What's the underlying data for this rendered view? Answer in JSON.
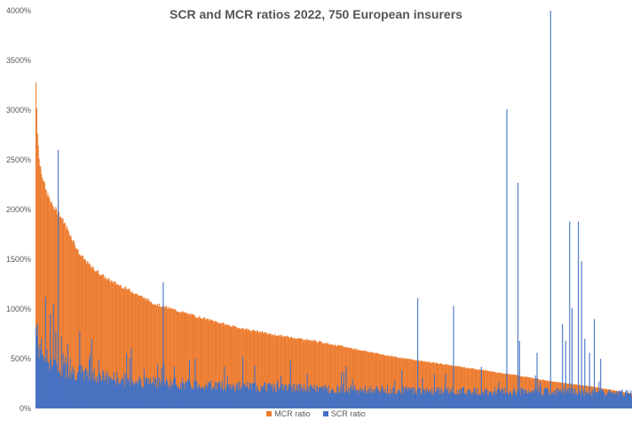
{
  "chart_data": {
    "type": "bar",
    "title": "SCR and MCR ratios 2022, 750 European insurers",
    "xlabel": "",
    "ylabel": "",
    "ylim": [
      0,
      4000
    ],
    "y_ticks": [
      "0%",
      "500%",
      "1000%",
      "1500%",
      "2000%",
      "2500%",
      "3000%",
      "3500%",
      "4000%"
    ],
    "n_insurers": 750,
    "grid": false,
    "legend_position": "bottom",
    "note": "Insurers sorted by MCR ratio descending; bars overlap (SCR drawn in front of MCR).",
    "mcr_profile": {
      "index": [
        0,
        2,
        4,
        8,
        12,
        20,
        30,
        40,
        55,
        70,
        90,
        120,
        150,
        200,
        250,
        300,
        350,
        400,
        450,
        500,
        550,
        600,
        650,
        700,
        749
      ],
      "value": [
        3280,
        2800,
        2500,
        2350,
        2200,
        2050,
        1950,
        1800,
        1550,
        1420,
        1300,
        1180,
        1050,
        930,
        820,
        740,
        680,
        600,
        520,
        460,
        400,
        340,
        270,
        220,
        150
      ]
    },
    "scr_profile": {
      "index": [
        0,
        5,
        15,
        30,
        60,
        100,
        150,
        200,
        300,
        400,
        500,
        600,
        700,
        749
      ],
      "value": [
        800,
        600,
        480,
        400,
        350,
        300,
        260,
        240,
        210,
        190,
        180,
        170,
        160,
        150
      ]
    },
    "scr_spikes": [
      {
        "i": 12,
        "v": 1120
      },
      {
        "i": 18,
        "v": 950
      },
      {
        "i": 22,
        "v": 1050
      },
      {
        "i": 25,
        "v": 780
      },
      {
        "i": 28,
        "v": 2600
      },
      {
        "i": 32,
        "v": 720
      },
      {
        "i": 40,
        "v": 650
      },
      {
        "i": 55,
        "v": 780
      },
      {
        "i": 70,
        "v": 700
      },
      {
        "i": 120,
        "v": 600
      },
      {
        "i": 160,
        "v": 1270
      },
      {
        "i": 200,
        "v": 500
      },
      {
        "i": 260,
        "v": 520
      },
      {
        "i": 320,
        "v": 480
      },
      {
        "i": 390,
        "v": 420
      },
      {
        "i": 460,
        "v": 380
      },
      {
        "i": 480,
        "v": 1110
      },
      {
        "i": 525,
        "v": 1030
      },
      {
        "i": 560,
        "v": 420
      },
      {
        "i": 592,
        "v": 3010
      },
      {
        "i": 606,
        "v": 2270
      },
      {
        "i": 608,
        "v": 680
      },
      {
        "i": 630,
        "v": 560
      },
      {
        "i": 647,
        "v": 4000
      },
      {
        "i": 662,
        "v": 850
      },
      {
        "i": 666,
        "v": 680
      },
      {
        "i": 671,
        "v": 1880
      },
      {
        "i": 674,
        "v": 1010
      },
      {
        "i": 682,
        "v": 1880
      },
      {
        "i": 686,
        "v": 1480
      },
      {
        "i": 690,
        "v": 700
      },
      {
        "i": 696,
        "v": 560
      },
      {
        "i": 702,
        "v": 900
      },
      {
        "i": 710,
        "v": 500
      }
    ],
    "series": [
      {
        "name": "MCR ratio",
        "color": "#ED7D31"
      },
      {
        "name": "SCR ratio",
        "color": "#4472C4"
      }
    ]
  }
}
